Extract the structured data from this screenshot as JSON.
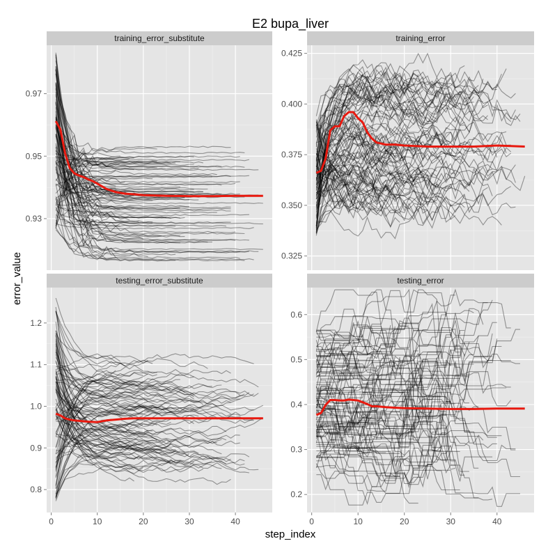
{
  "colors": {
    "panel_bg": "#e5e5e5",
    "grid_major": "#ffffff",
    "strip_bg": "#cccccc",
    "trace": "#000000",
    "mean": "#e8190f",
    "tick": "#7f7f7f"
  },
  "chart_data": {
    "type": "line",
    "title": "E2 bupa_liver",
    "xlabel": "step_index",
    "ylabel": "error_value",
    "grid": true,
    "facet_layout": "2x2",
    "x_ticks": [
      0,
      10,
      20,
      30,
      40
    ],
    "xlim": [
      -1,
      48
    ],
    "panels": [
      {
        "name": "training_error_substitute",
        "ylim": [
          0.9135,
          0.9855
        ],
        "y_ticks": [
          0.93,
          0.95,
          0.97
        ],
        "y_tick_labels": [
          "0.93",
          "0.95",
          "0.97"
        ],
        "trace_count": 100,
        "trace_alpha": 0.38,
        "trace_model": "decay",
        "trace_start_range": [
          0.926,
          0.983
        ],
        "trace_end_range": [
          0.916,
          0.953
        ],
        "trace_length_range": [
          13,
          46
        ],
        "mean_series": {
          "name": "mean",
          "x": [
            1,
            2,
            3,
            4,
            5,
            6,
            7,
            8,
            9,
            10,
            12,
            14,
            16,
            18,
            20,
            25,
            30,
            35,
            40,
            46
          ],
          "y": [
            0.9612,
            0.9585,
            0.951,
            0.9462,
            0.9445,
            0.9438,
            0.9433,
            0.9426,
            0.942,
            0.9412,
            0.9395,
            0.9385,
            0.938,
            0.9378,
            0.9375,
            0.9373,
            0.9372,
            0.9372,
            0.9373,
            0.9373
          ]
        }
      },
      {
        "name": "training_error",
        "ylim": [
          0.318,
          0.429
        ],
        "y_ticks": [
          0.325,
          0.35,
          0.375,
          0.4,
          0.425
        ],
        "y_tick_labels": [
          "0.325",
          "0.350",
          "0.375",
          "0.400",
          "0.425"
        ],
        "trace_count": 100,
        "trace_alpha": 0.38,
        "trace_model": "rise_hold",
        "trace_start_range": [
          0.335,
          0.395
        ],
        "trace_end_range": [
          0.345,
          0.415
        ],
        "trace_length_range": [
          10,
          46
        ],
        "mean_series": {
          "name": "mean",
          "x": [
            1,
            2,
            3,
            4,
            5,
            6,
            7,
            8,
            9,
            10,
            11,
            12,
            13,
            14,
            16,
            18,
            20,
            25,
            30,
            35,
            40,
            46
          ],
          "y": [
            0.366,
            0.367,
            0.373,
            0.387,
            0.389,
            0.389,
            0.394,
            0.396,
            0.396,
            0.393,
            0.391,
            0.386,
            0.383,
            0.381,
            0.38,
            0.38,
            0.3795,
            0.379,
            0.379,
            0.379,
            0.3795,
            0.379
          ]
        }
      },
      {
        "name": "testing_error_substitute",
        "ylim": [
          0.745,
          1.285
        ],
        "y_ticks": [
          0.8,
          0.9,
          1.0,
          1.1,
          1.2
        ],
        "y_tick_labels": [
          "0.8",
          "0.9",
          "1.0",
          "1.1",
          "1.2"
        ],
        "trace_count": 100,
        "trace_alpha": 0.38,
        "trace_model": "wander",
        "trace_start_range": [
          0.77,
          1.26
        ],
        "trace_end_range": [
          0.85,
          1.1
        ],
        "trace_length_range": [
          13,
          46
        ],
        "mean_series": {
          "name": "mean",
          "x": [
            1,
            2,
            3,
            4,
            5,
            6,
            8,
            10,
            12,
            14,
            16,
            18,
            20,
            25,
            30,
            35,
            40,
            46
          ],
          "y": [
            0.982,
            0.978,
            0.971,
            0.968,
            0.966,
            0.965,
            0.963,
            0.962,
            0.966,
            0.968,
            0.97,
            0.971,
            0.971,
            0.971,
            0.971,
            0.971,
            0.971,
            0.971
          ]
        }
      },
      {
        "name": "testing_error",
        "ylim": [
          0.16,
          0.66
        ],
        "y_ticks": [
          0.2,
          0.3,
          0.4,
          0.5,
          0.6
        ],
        "y_tick_labels": [
          "0.2",
          "0.3",
          "0.4",
          "0.5",
          "0.6"
        ],
        "trace_count": 100,
        "trace_alpha": 0.38,
        "trace_model": "step",
        "trace_start_range": [
          0.24,
          0.57
        ],
        "trace_end_range": [
          0.17,
          0.63
        ],
        "trace_length_range": [
          8,
          46
        ],
        "mean_series": {
          "name": "mean",
          "x": [
            1,
            2,
            3,
            4,
            5,
            6,
            7,
            8,
            9,
            10,
            11,
            12,
            13,
            14,
            16,
            18,
            20,
            25,
            30,
            35,
            40,
            46
          ],
          "y": [
            0.377,
            0.381,
            0.399,
            0.41,
            0.41,
            0.409,
            0.409,
            0.411,
            0.41,
            0.409,
            0.405,
            0.401,
            0.396,
            0.396,
            0.394,
            0.393,
            0.392,
            0.391,
            0.39,
            0.39,
            0.391,
            0.391
          ]
        }
      }
    ]
  }
}
